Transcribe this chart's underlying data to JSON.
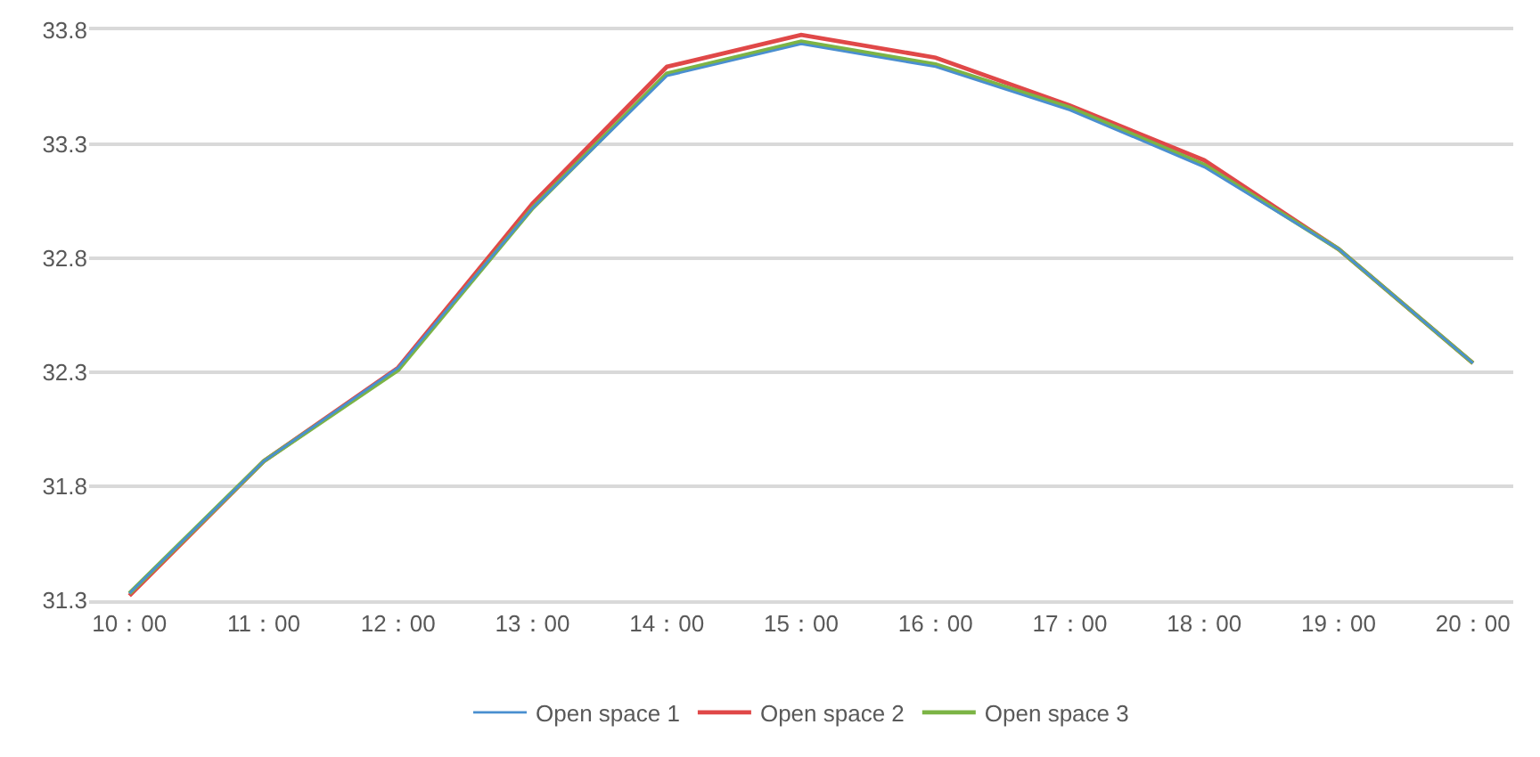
{
  "chart_data": {
    "type": "line",
    "categories": [
      "10：00",
      "11：00",
      "12：00",
      "13：00",
      "14：00",
      "15：00",
      "16：00",
      "17：00",
      "18：00",
      "19：00",
      "20：00"
    ],
    "series": [
      {
        "name": "Open space 1",
        "color": "#4a8fd0",
        "values": [
          31.33,
          31.91,
          32.32,
          33.02,
          33.6,
          33.74,
          33.64,
          33.45,
          33.2,
          32.84,
          32.34
        ]
      },
      {
        "name": "Open space 2",
        "color": "#e04848",
        "values": [
          31.32,
          31.91,
          32.32,
          33.04,
          33.64,
          33.78,
          33.68,
          33.47,
          33.23,
          32.84,
          32.34
        ]
      },
      {
        "name": "Open space 3",
        "color": "#7cb445",
        "values": [
          31.33,
          31.91,
          32.31,
          33.02,
          33.61,
          33.75,
          33.65,
          33.46,
          33.21,
          32.84,
          32.34
        ]
      }
    ],
    "ylim": [
      31.3,
      33.8
    ],
    "yticks": [
      31.3,
      31.8,
      32.3,
      32.8,
      33.3,
      33.8
    ],
    "grid": "y",
    "legend": "bottom",
    "marker": "none",
    "line_style": "solid"
  }
}
